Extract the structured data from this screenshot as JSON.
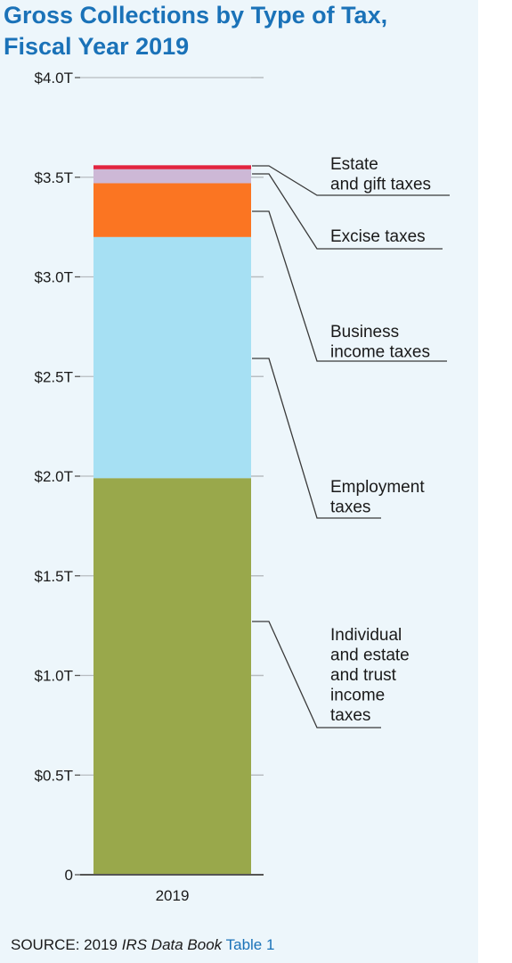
{
  "title_lines": [
    "Gross Collections by Type of Tax,",
    "Fiscal Year 2019"
  ],
  "source": {
    "prefix": "SOURCE: 2019 ",
    "book": "IRS Data Book",
    "link": "Table 1"
  },
  "chart_data": {
    "type": "bar",
    "stacked": true,
    "categories": [
      "2019"
    ],
    "ylim": [
      0,
      4.0
    ],
    "yticks": [
      {
        "value": 0,
        "label": "0"
      },
      {
        "value": 0.5,
        "label": "$0.5T"
      },
      {
        "value": 1.0,
        "label": "$1.0T"
      },
      {
        "value": 1.5,
        "label": "$1.5T"
      },
      {
        "value": 2.0,
        "label": "$2.0T"
      },
      {
        "value": 2.5,
        "label": "$2.5T"
      },
      {
        "value": 3.0,
        "label": "$3.0T"
      },
      {
        "value": 3.5,
        "label": "$3.5T"
      },
      {
        "value": 4.0,
        "label": "$4.0T"
      }
    ],
    "series": [
      {
        "name": "Individual and estate and trust income taxes",
        "values": [
          1.99
        ],
        "color": "#99a84b",
        "label_lines": [
          "Individual",
          "and estate",
          "and trust",
          "income",
          "taxes"
        ]
      },
      {
        "name": "Employment taxes",
        "values": [
          1.21
        ],
        "color": "#a6e0f3",
        "label_lines": [
          "Employment",
          "taxes"
        ]
      },
      {
        "name": "Business income taxes",
        "values": [
          0.27
        ],
        "color": "#fb7522",
        "label_lines": [
          "Business",
          "income taxes"
        ]
      },
      {
        "name": "Excise taxes",
        "values": [
          0.07
        ],
        "color": "#cdb8d6",
        "label_lines": [
          "Excise taxes"
        ]
      },
      {
        "name": "Estate and gift taxes",
        "values": [
          0.02
        ],
        "color": "#e2243f",
        "label_lines": [
          "Estate",
          "and gift taxes"
        ]
      }
    ],
    "colors": {
      "axis": "#555555",
      "grid": "#b7bcc0",
      "leader": "#3a3a3a"
    }
  }
}
